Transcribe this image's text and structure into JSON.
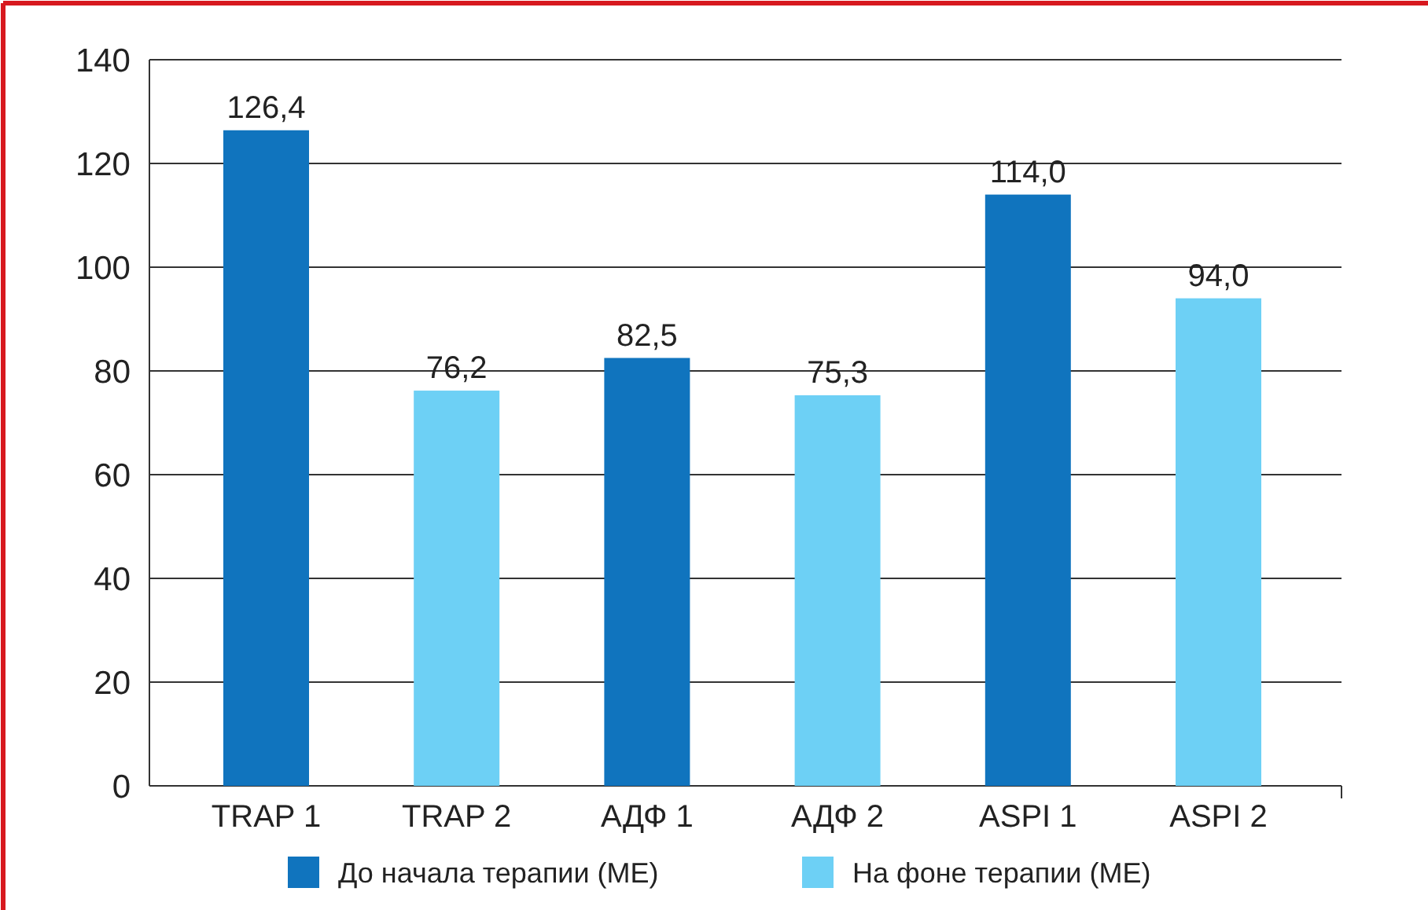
{
  "chart_data": {
    "type": "bar",
    "categories": [
      "TRAP 1",
      "TRAP 2",
      "АДФ 1",
      "АДФ 2",
      "ASPI 1",
      "ASPI 2"
    ],
    "series": [
      {
        "name": "До начала терапии (МЕ)",
        "color": "#1074be",
        "values": [
          126.4,
          null,
          82.5,
          null,
          114.0,
          null
        ],
        "value_labels": [
          "126,4",
          null,
          "82,5",
          null,
          "114,0",
          null
        ]
      },
      {
        "name": "На фоне терапии (МЕ)",
        "color": "#6dd0f5",
        "values": [
          null,
          76.2,
          null,
          75.3,
          null,
          94.0
        ],
        "value_labels": [
          null,
          "76,2",
          null,
          "75,3",
          null,
          "94,0"
        ]
      }
    ],
    "ylim": [
      0,
      140
    ],
    "yticks": [
      0,
      20,
      40,
      60,
      80,
      100,
      120,
      140
    ],
    "grid": "y",
    "legend": "bottom"
  }
}
